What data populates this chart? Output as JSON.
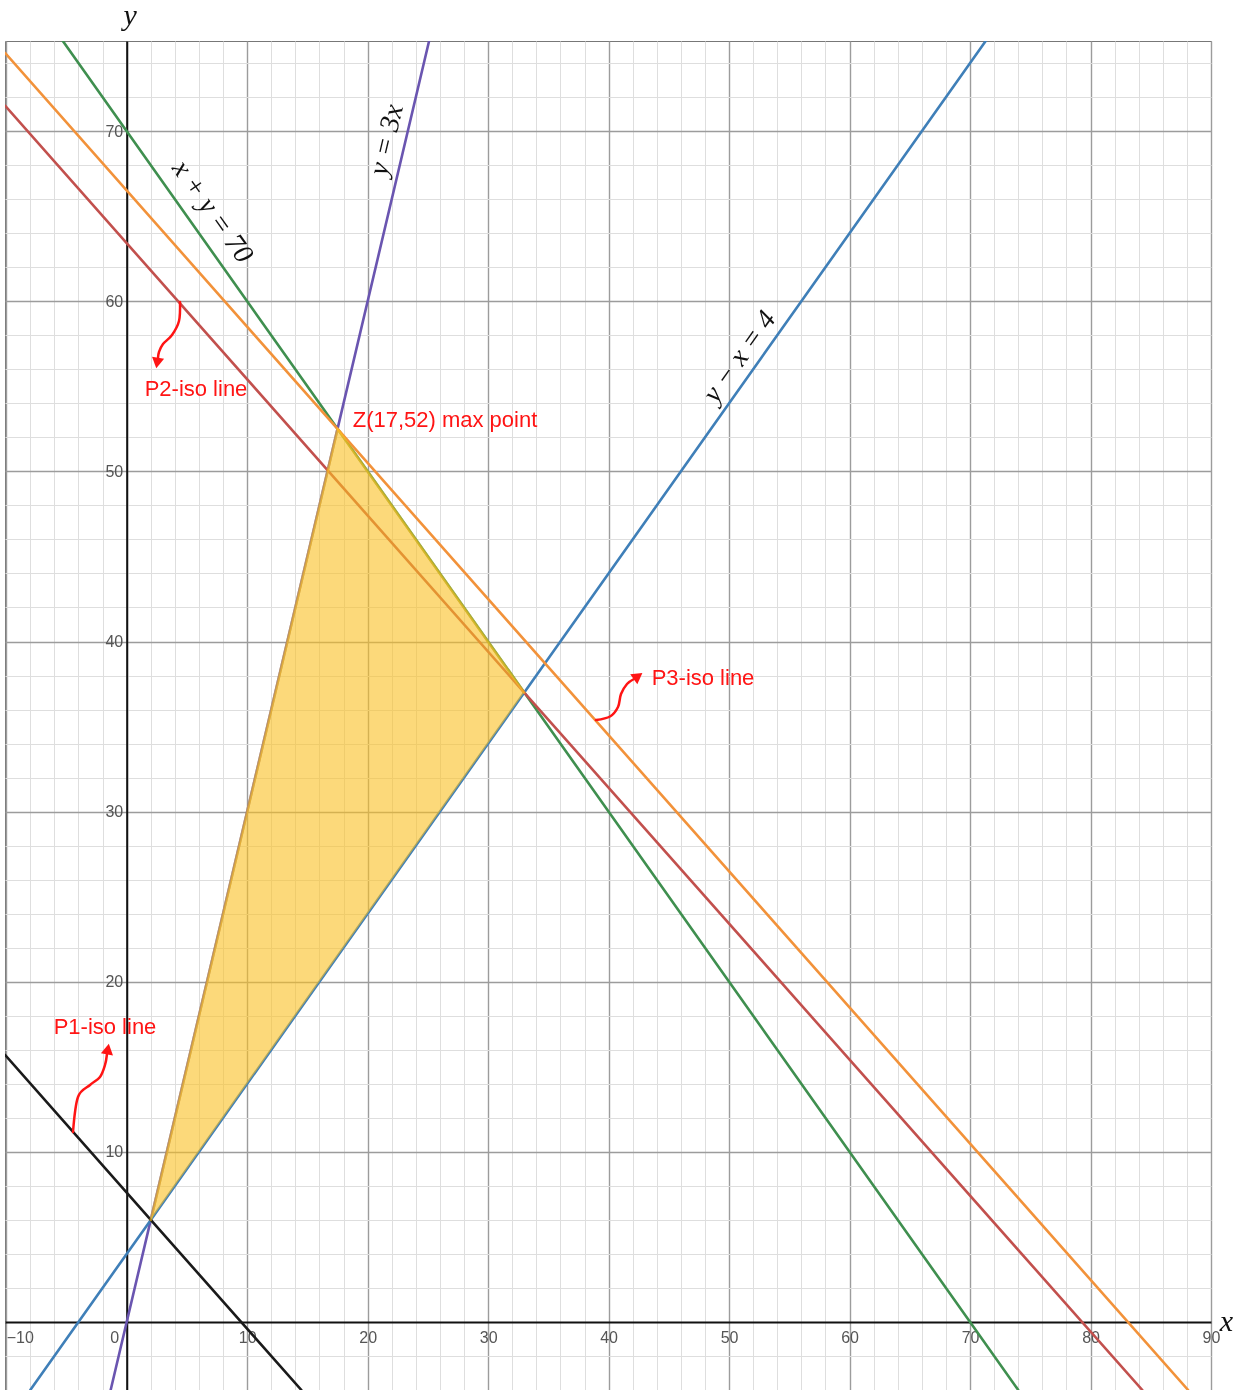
{
  "chart_data": {
    "type": "line",
    "xlabel": "x",
    "ylabel": "y",
    "xlim": [
      -10.1,
      90
    ],
    "ylim": [
      -4,
      75.3
    ],
    "xticks": [
      -10,
      0,
      10,
      20,
      30,
      40,
      50,
      60,
      70,
      80,
      90
    ],
    "yticks": [
      10,
      20,
      30,
      40,
      50,
      60,
      70
    ],
    "grid": true,
    "series": [
      {
        "color": "#fac021",
        "x": [
          2,
          17.5,
          33
        ],
        "values": [
          6,
          52.5,
          37
        ],
        "lower": [
          6,
          21.5,
          37
        ],
        "upper": [
          6,
          52.5,
          37
        ]
      },
      {
        "color": "#3f8f4f",
        "x": [
          -5.3,
          17.5,
          33,
          74
        ],
        "values": [
          75.3,
          52.5,
          37,
          -4
        ]
      },
      {
        "color": "#6a55b0",
        "x": [
          -1.33,
          2,
          17.5,
          25.1
        ],
        "values": [
          -4,
          6,
          52.5,
          75.3
        ]
      },
      {
        "color": "#3f7fb8",
        "x": [
          -8,
          2,
          33,
          71.3
        ],
        "values": [
          -4,
          6,
          37,
          75.3
        ]
      },
      {
        "color": "#c2504d",
        "x": [
          -10.1,
          33,
          84.3
        ],
        "values": [
          71.5,
          37,
          -4
        ]
      },
      {
        "color": "#f2923a",
        "x": [
          -10.1,
          17.5,
          88.1
        ],
        "values": [
          74.6,
          52.5,
          -4
        ]
      },
      {
        "color": "#1a1a1a",
        "x": [
          -10.1,
          2,
          14.5
        ],
        "values": [
          15.7,
          6,
          -4
        ]
      }
    ],
    "annotations": [
      "x + y = 70",
      "y = 3x",
      "y − x = 4",
      "P2-iso line",
      "Z(17,52) max point",
      "P3-iso line",
      "P1-iso line"
    ]
  }
}
